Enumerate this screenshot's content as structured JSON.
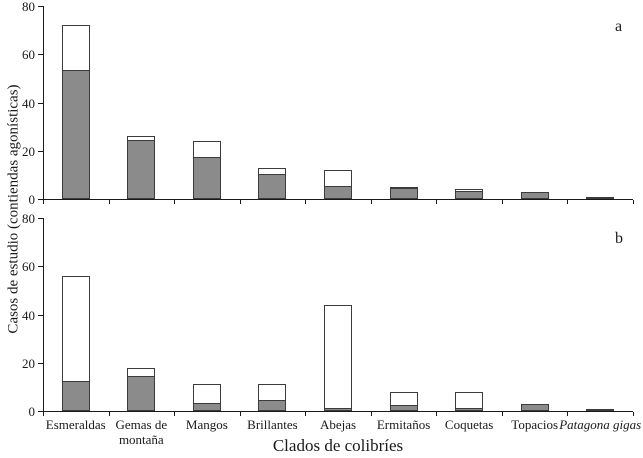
{
  "figure": {
    "ylabel": "Casos de estudio (contiendas agonísticas)",
    "xlabel": "Clados de colibríes"
  },
  "chart_data": {
    "type": "bar",
    "stacked": true,
    "orientation": "vertical",
    "ylim": [
      0,
      80
    ],
    "yticks": [
      0,
      20,
      40,
      60,
      80
    ],
    "grid": false,
    "legend": "none",
    "categories": [
      {
        "label": "Esmeraldas",
        "italic": false
      },
      {
        "label": "Gemas de\nmontaña",
        "italic": false
      },
      {
        "label": "Mangos",
        "italic": false
      },
      {
        "label": "Brillantes",
        "italic": false
      },
      {
        "label": "Abejas",
        "italic": false
      },
      {
        "label": "Ermitaños",
        "italic": false
      },
      {
        "label": "Coquetas",
        "italic": false
      },
      {
        "label": "Topacios",
        "italic": false
      },
      {
        "label": "Patagona gigas",
        "italic": true
      }
    ],
    "panels": [
      {
        "label": "a",
        "series": [
          {
            "name": "gray-filled",
            "values": [
              53,
              24,
              17,
              10,
              5,
              4,
              3,
              3,
              1
            ]
          },
          {
            "name": "white-open",
            "values": [
              19,
              2,
              7,
              3,
              7,
              1,
              1,
              0,
              0
            ]
          }
        ],
        "totals": [
          72,
          26,
          24,
          13,
          12,
          5,
          4,
          3,
          1
        ]
      },
      {
        "label": "b",
        "series": [
          {
            "name": "gray-filled",
            "values": [
              12,
              14,
              3,
              4,
              1,
              2,
              1,
              3,
              1
            ]
          },
          {
            "name": "white-open",
            "values": [
              44,
              4,
              8,
              7,
              43,
              6,
              7,
              0,
              0
            ]
          }
        ],
        "totals": [
          56,
          18,
          11,
          11,
          44,
          8,
          8,
          3,
          1
        ]
      }
    ],
    "colors": {
      "gray_fill": "#8b8b8b",
      "white_fill": "#ffffff",
      "bar_border": "#3c3c3c",
      "axis": "#1a1a1a"
    }
  }
}
